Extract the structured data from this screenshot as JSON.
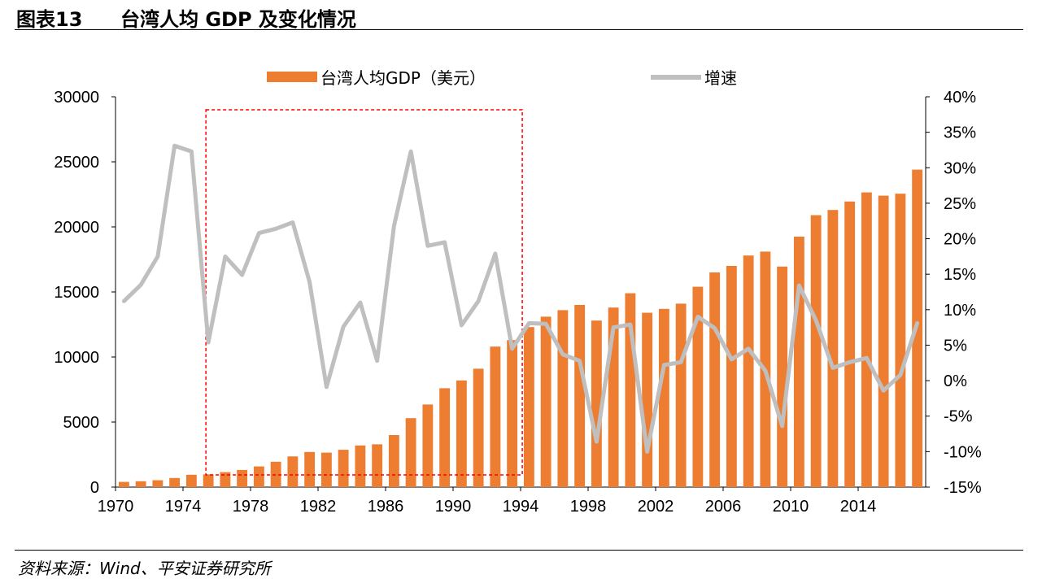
{
  "header": {
    "figure_label": "图表13",
    "title": "台湾人均 GDP 及变化情况"
  },
  "footer": {
    "source": "资料来源：Wind、平安证券研究所"
  },
  "colors": {
    "bar": "#ED7D31",
    "line": "#BFBFBF",
    "highlight_box": "#FF0000"
  },
  "chart_data": {
    "type": "bar",
    "title": "台湾人均 GDP 及变化情况",
    "x": [
      1970,
      1971,
      1972,
      1973,
      1974,
      1975,
      1976,
      1977,
      1978,
      1979,
      1980,
      1981,
      1982,
      1983,
      1984,
      1985,
      1986,
      1987,
      1988,
      1989,
      1990,
      1991,
      1992,
      1993,
      1994,
      1995,
      1996,
      1997,
      1998,
      1999,
      2000,
      2001,
      2002,
      2003,
      2004,
      2005,
      2006,
      2007,
      2008,
      2009,
      2010,
      2011,
      2012,
      2013,
      2014,
      2015,
      2016,
      2017
    ],
    "x_tick_labels": [
      "1970",
      "1974",
      "1978",
      "1982",
      "1986",
      "1990",
      "1994",
      "1998",
      "2002",
      "2006",
      "2010",
      "2014"
    ],
    "series": [
      {
        "name": "台湾人均GDP（美元）",
        "type": "bar",
        "axis": "left",
        "values": [
          400,
          450,
          530,
          700,
          950,
          980,
          1150,
          1320,
          1590,
          1950,
          2360,
          2700,
          2650,
          2870,
          3200,
          3290,
          4000,
          5300,
          6350,
          7600,
          8200,
          9100,
          10800,
          11300,
          12300,
          13100,
          13600,
          14000,
          12800,
          13800,
          14900,
          13400,
          13700,
          14100,
          15400,
          16500,
          17000,
          17800,
          18100,
          16950,
          19250,
          20900,
          21300,
          21950,
          22650,
          22400,
          22550,
          24400
        ]
      },
      {
        "name": "增速",
        "type": "line",
        "axis": "right",
        "values": [
          11.2,
          13.5,
          17.5,
          33.1,
          32.3,
          5.4,
          17.5,
          14.9,
          20.8,
          21.4,
          22.3,
          13.9,
          -0.9,
          7.6,
          11.0,
          2.8,
          21.8,
          32.3,
          19.0,
          19.5,
          7.8,
          11.2,
          17.9,
          4.5,
          8.1,
          8.0,
          3.7,
          2.8,
          -8.6,
          7.5,
          7.9,
          -10.0,
          2.2,
          2.6,
          9.0,
          7.4,
          3.0,
          4.5,
          1.4,
          -6.4,
          13.4,
          8.5,
          1.8,
          2.6,
          3.2,
          -1.4,
          0.8,
          8.1
        ]
      }
    ],
    "y_left": {
      "min": 0,
      "max": 30000,
      "ticks": [
        0,
        5000,
        10000,
        15000,
        20000,
        25000,
        30000
      ],
      "tick_labels": [
        "0",
        "5000",
        "10000",
        "15000",
        "20000",
        "25000",
        "30000"
      ]
    },
    "y_right": {
      "min": -15,
      "max": 40,
      "ticks": [
        -15,
        -10,
        -5,
        0,
        5,
        10,
        15,
        20,
        25,
        30,
        35,
        40
      ],
      "tick_labels": [
        "-15%",
        "-10%",
        "-5%",
        "0%",
        "5%",
        "10%",
        "15%",
        "20%",
        "25%",
        "30%",
        "35%",
        "40%"
      ]
    },
    "highlight_range": {
      "x_start": 1975,
      "x_end": 1993,
      "y_top": 29000
    },
    "legend": {
      "position": "top-center",
      "entries": [
        "台湾人均GDP（美元）",
        "增速"
      ]
    }
  }
}
